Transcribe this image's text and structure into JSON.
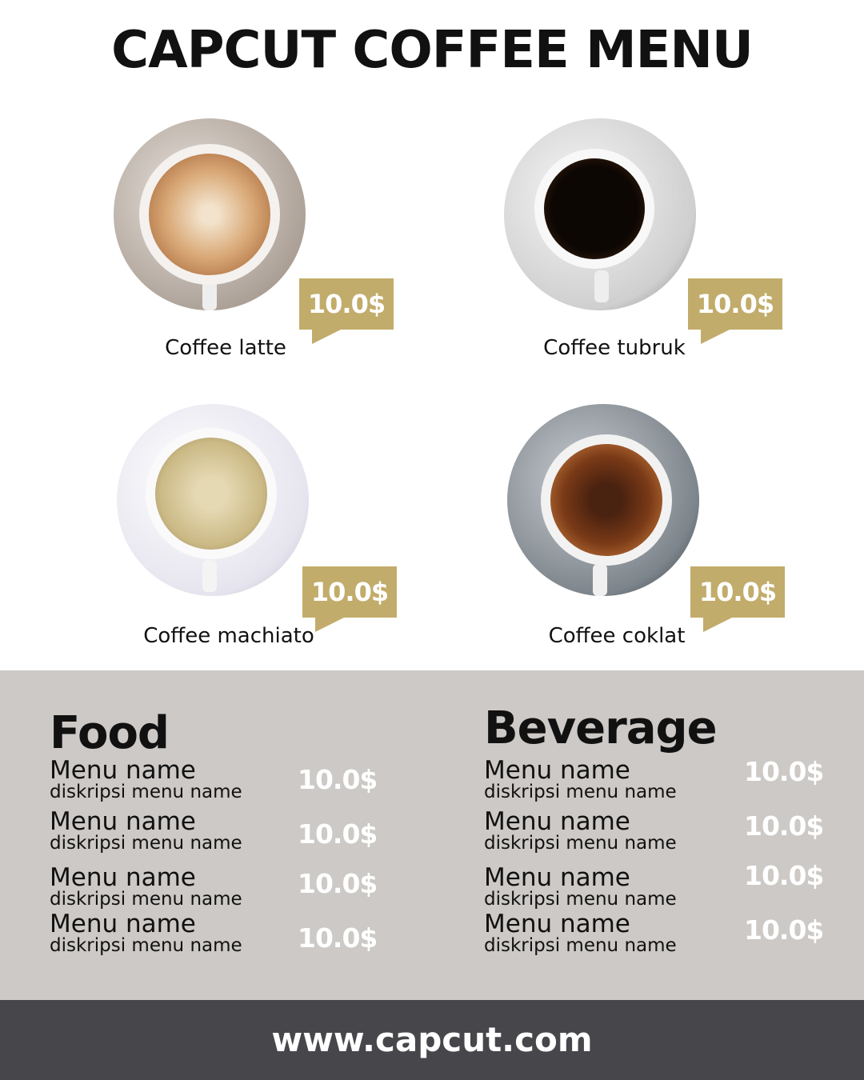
{
  "title": "CAPCUT COFFEE MENU",
  "colors": {
    "accent": "#c2ac6b",
    "band": "#ccc9c6",
    "footer": "#47464b"
  },
  "coffees": [
    {
      "name": "Coffee latte",
      "price": "10.0$"
    },
    {
      "name": "Coffee tubruk",
      "price": "10.0$"
    },
    {
      "name": "Coffee machiato",
      "price": "10.0$"
    },
    {
      "name": "Coffee coklat",
      "price": "10.0$"
    }
  ],
  "food": {
    "heading": "Food",
    "items": [
      {
        "name": "Menu name",
        "desc": "diskripsi menu name",
        "price": "10.0$"
      },
      {
        "name": "Menu name",
        "desc": "diskripsi menu name",
        "price": "10.0$"
      },
      {
        "name": "Menu name",
        "desc": "diskripsi menu name",
        "price": "10.0$"
      },
      {
        "name": "Menu name",
        "desc": "diskripsi menu name",
        "price": "10.0$"
      }
    ]
  },
  "beverage": {
    "heading": "Beverage",
    "items": [
      {
        "name": "Menu name",
        "desc": "diskripsi menu name",
        "price": "10.0$"
      },
      {
        "name": "Menu name",
        "desc": "diskripsi menu name",
        "price": "10.0$"
      },
      {
        "name": "Menu name",
        "desc": "diskripsi menu name",
        "price": "10.0$"
      },
      {
        "name": "Menu name",
        "desc": "diskripsi menu name",
        "price": "10.0$"
      }
    ]
  },
  "footer": "www.capcut.com"
}
